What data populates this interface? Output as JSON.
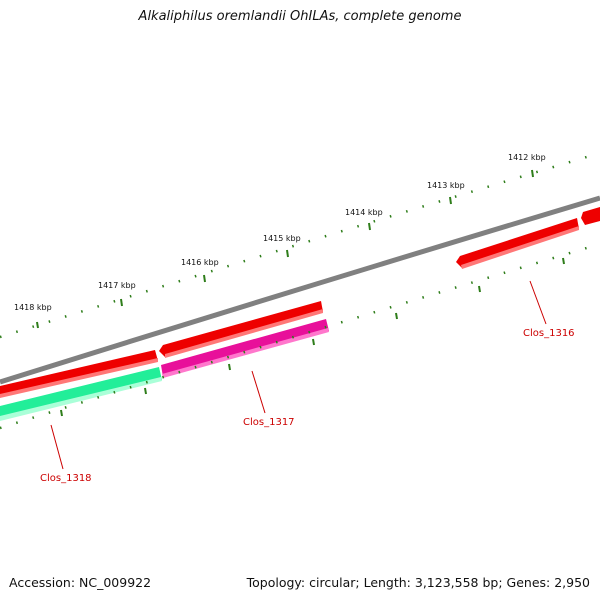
{
  "title": "Alkaliphilus oremlandii OhILAs, complete genome",
  "footer": {
    "accession": "Accession: NC_009922",
    "summary": "Topology: circular; Length: 3,123,558 bp; Genes: 2,950"
  },
  "ticks": [
    {
      "label": "1412 kbp"
    },
    {
      "label": "1413 kbp"
    },
    {
      "label": "1414 kbp"
    },
    {
      "label": "1415 kbp"
    },
    {
      "label": "1416 kbp"
    },
    {
      "label": "1417 kbp"
    },
    {
      "label": "1418 kbp"
    }
  ],
  "genes": [
    {
      "label": "Clos_1316"
    },
    {
      "label": "Clos_1317"
    },
    {
      "label": "Clos_1318"
    }
  ],
  "colors": {
    "backbone": "#808080",
    "forward_cds": "#ff0000",
    "gene_1317": "#ff1493",
    "gene_1318": "#33ffb0",
    "tick_marks": "#2e7d1a",
    "gene_label": "#cc0000"
  }
}
